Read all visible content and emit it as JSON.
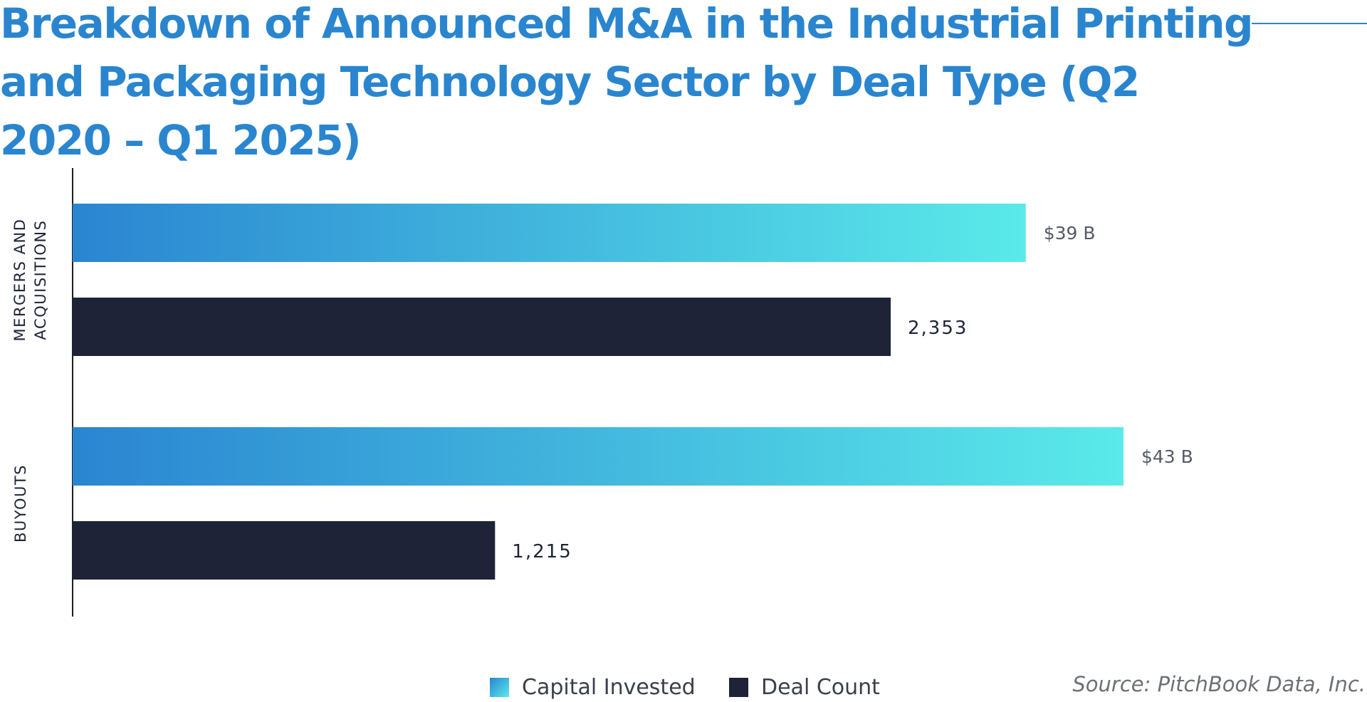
{
  "chart_data": {
    "type": "bar",
    "orientation": "horizontal",
    "title": "Breakdown of Announced M&A in the Industrial Printing and Packaging Technology Sector by Deal Type (Q2 2020 – Q1 2025)",
    "categories": [
      {
        "id": "ma",
        "lines": [
          "MERGERS AND",
          "ACQUISITIONS"
        ]
      },
      {
        "id": "buyouts",
        "lines": [
          "BUYOUTS"
        ]
      }
    ],
    "series": [
      {
        "name": "Capital Invested",
        "unit": "B",
        "values": [
          39,
          43
        ],
        "labels": [
          "$39 B",
          "$43 B"
        ],
        "color_start": "#2a85d1",
        "color_end": "#5aeaea"
      },
      {
        "name": "Deal Count",
        "values": [
          2353,
          1215
        ],
        "labels": [
          "2,353",
          "1,215"
        ],
        "color": "#1e2337"
      }
    ],
    "legend_position": "bottom-center",
    "grid": false
  },
  "source": "Source: PitchBook Data, Inc."
}
